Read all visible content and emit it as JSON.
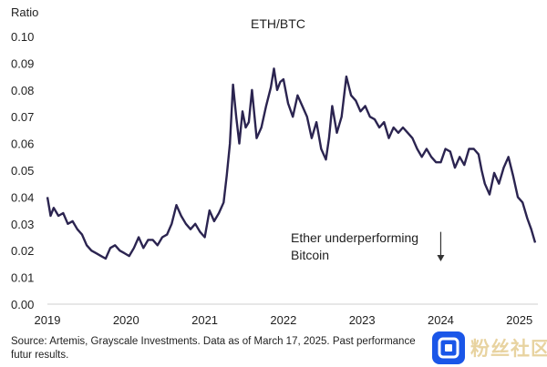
{
  "chart_data": {
    "type": "line",
    "title": "ETH/BTC",
    "ylabel": "Ratio",
    "xlabel": "",
    "ylim": [
      0.0,
      0.1
    ],
    "xlim": [
      2019.0,
      2025.2
    ],
    "y_ticks": [
      0.0,
      0.01,
      0.02,
      0.03,
      0.04,
      0.05,
      0.06,
      0.07,
      0.08,
      0.09,
      0.1
    ],
    "y_tick_labels": [
      "0.00",
      "0.01",
      "0.02",
      "0.03",
      "0.04",
      "0.05",
      "0.06",
      "0.07",
      "0.08",
      "0.09",
      "0.10"
    ],
    "x_ticks": [
      2019,
      2020,
      2021,
      2022,
      2023,
      2024,
      2025
    ],
    "x_tick_labels": [
      "2019",
      "2020",
      "2021",
      "2022",
      "2023",
      "2024",
      "2025"
    ],
    "series": [
      {
        "name": "ETH/BTC",
        "color": "#2b2450",
        "x": [
          2019.0,
          2019.04,
          2019.08,
          2019.14,
          2019.2,
          2019.26,
          2019.32,
          2019.38,
          2019.44,
          2019.5,
          2019.56,
          2019.62,
          2019.68,
          2019.74,
          2019.8,
          2019.86,
          2019.92,
          2019.98,
          2020.04,
          2020.1,
          2020.16,
          2020.22,
          2020.28,
          2020.34,
          2020.4,
          2020.46,
          2020.52,
          2020.58,
          2020.64,
          2020.7,
          2020.76,
          2020.82,
          2020.88,
          2020.94,
          2021.0,
          2021.06,
          2021.12,
          2021.18,
          2021.24,
          2021.28,
          2021.32,
          2021.36,
          2021.4,
          2021.44,
          2021.48,
          2021.52,
          2021.56,
          2021.6,
          2021.66,
          2021.72,
          2021.78,
          2021.84,
          2021.88,
          2021.92,
          2021.96,
          2022.0,
          2022.06,
          2022.12,
          2022.18,
          2022.24,
          2022.3,
          2022.36,
          2022.42,
          2022.48,
          2022.54,
          2022.58,
          2022.62,
          2022.68,
          2022.74,
          2022.8,
          2022.86,
          2022.92,
          2022.98,
          2023.04,
          2023.1,
          2023.16,
          2023.22,
          2023.28,
          2023.34,
          2023.4,
          2023.46,
          2023.52,
          2023.58,
          2023.64,
          2023.7,
          2023.76,
          2023.82,
          2023.88,
          2023.94,
          2024.0,
          2024.06,
          2024.12,
          2024.18,
          2024.24,
          2024.3,
          2024.36,
          2024.42,
          2024.48,
          2024.52,
          2024.56,
          2024.62,
          2024.68,
          2024.74,
          2024.8,
          2024.86,
          2024.92,
          2024.98,
          2025.04,
          2025.1,
          2025.15,
          2025.2
        ],
        "values": [
          0.04,
          0.033,
          0.036,
          0.033,
          0.034,
          0.03,
          0.031,
          0.028,
          0.026,
          0.022,
          0.02,
          0.019,
          0.018,
          0.017,
          0.021,
          0.022,
          0.02,
          0.019,
          0.018,
          0.021,
          0.025,
          0.021,
          0.024,
          0.024,
          0.022,
          0.025,
          0.026,
          0.03,
          0.037,
          0.033,
          0.03,
          0.028,
          0.03,
          0.027,
          0.025,
          0.035,
          0.031,
          0.034,
          0.038,
          0.048,
          0.06,
          0.082,
          0.07,
          0.06,
          0.072,
          0.066,
          0.068,
          0.08,
          0.062,
          0.066,
          0.074,
          0.081,
          0.088,
          0.08,
          0.083,
          0.084,
          0.075,
          0.07,
          0.078,
          0.074,
          0.07,
          0.062,
          0.068,
          0.058,
          0.054,
          0.062,
          0.074,
          0.064,
          0.07,
          0.085,
          0.078,
          0.076,
          0.072,
          0.074,
          0.07,
          0.069,
          0.066,
          0.068,
          0.062,
          0.066,
          0.064,
          0.066,
          0.064,
          0.062,
          0.058,
          0.055,
          0.058,
          0.055,
          0.053,
          0.053,
          0.058,
          0.057,
          0.051,
          0.055,
          0.052,
          0.058,
          0.058,
          0.056,
          0.05,
          0.045,
          0.041,
          0.049,
          0.045,
          0.051,
          0.055,
          0.048,
          0.04,
          0.038,
          0.032,
          0.028,
          0.023
        ]
      }
    ],
    "annotation": {
      "lines": [
        "Ether underperforming",
        "Bitcoin"
      ],
      "arrow_x": 2024.0,
      "arrow_from": 0.027,
      "arrow_to": 0.016
    }
  },
  "source_note": "Source: Artemis, Grayscale Investments. Data as of March 17, 2025. Past performance",
  "source_note_line2": "futur results.",
  "watermark_text": "粉丝社区"
}
